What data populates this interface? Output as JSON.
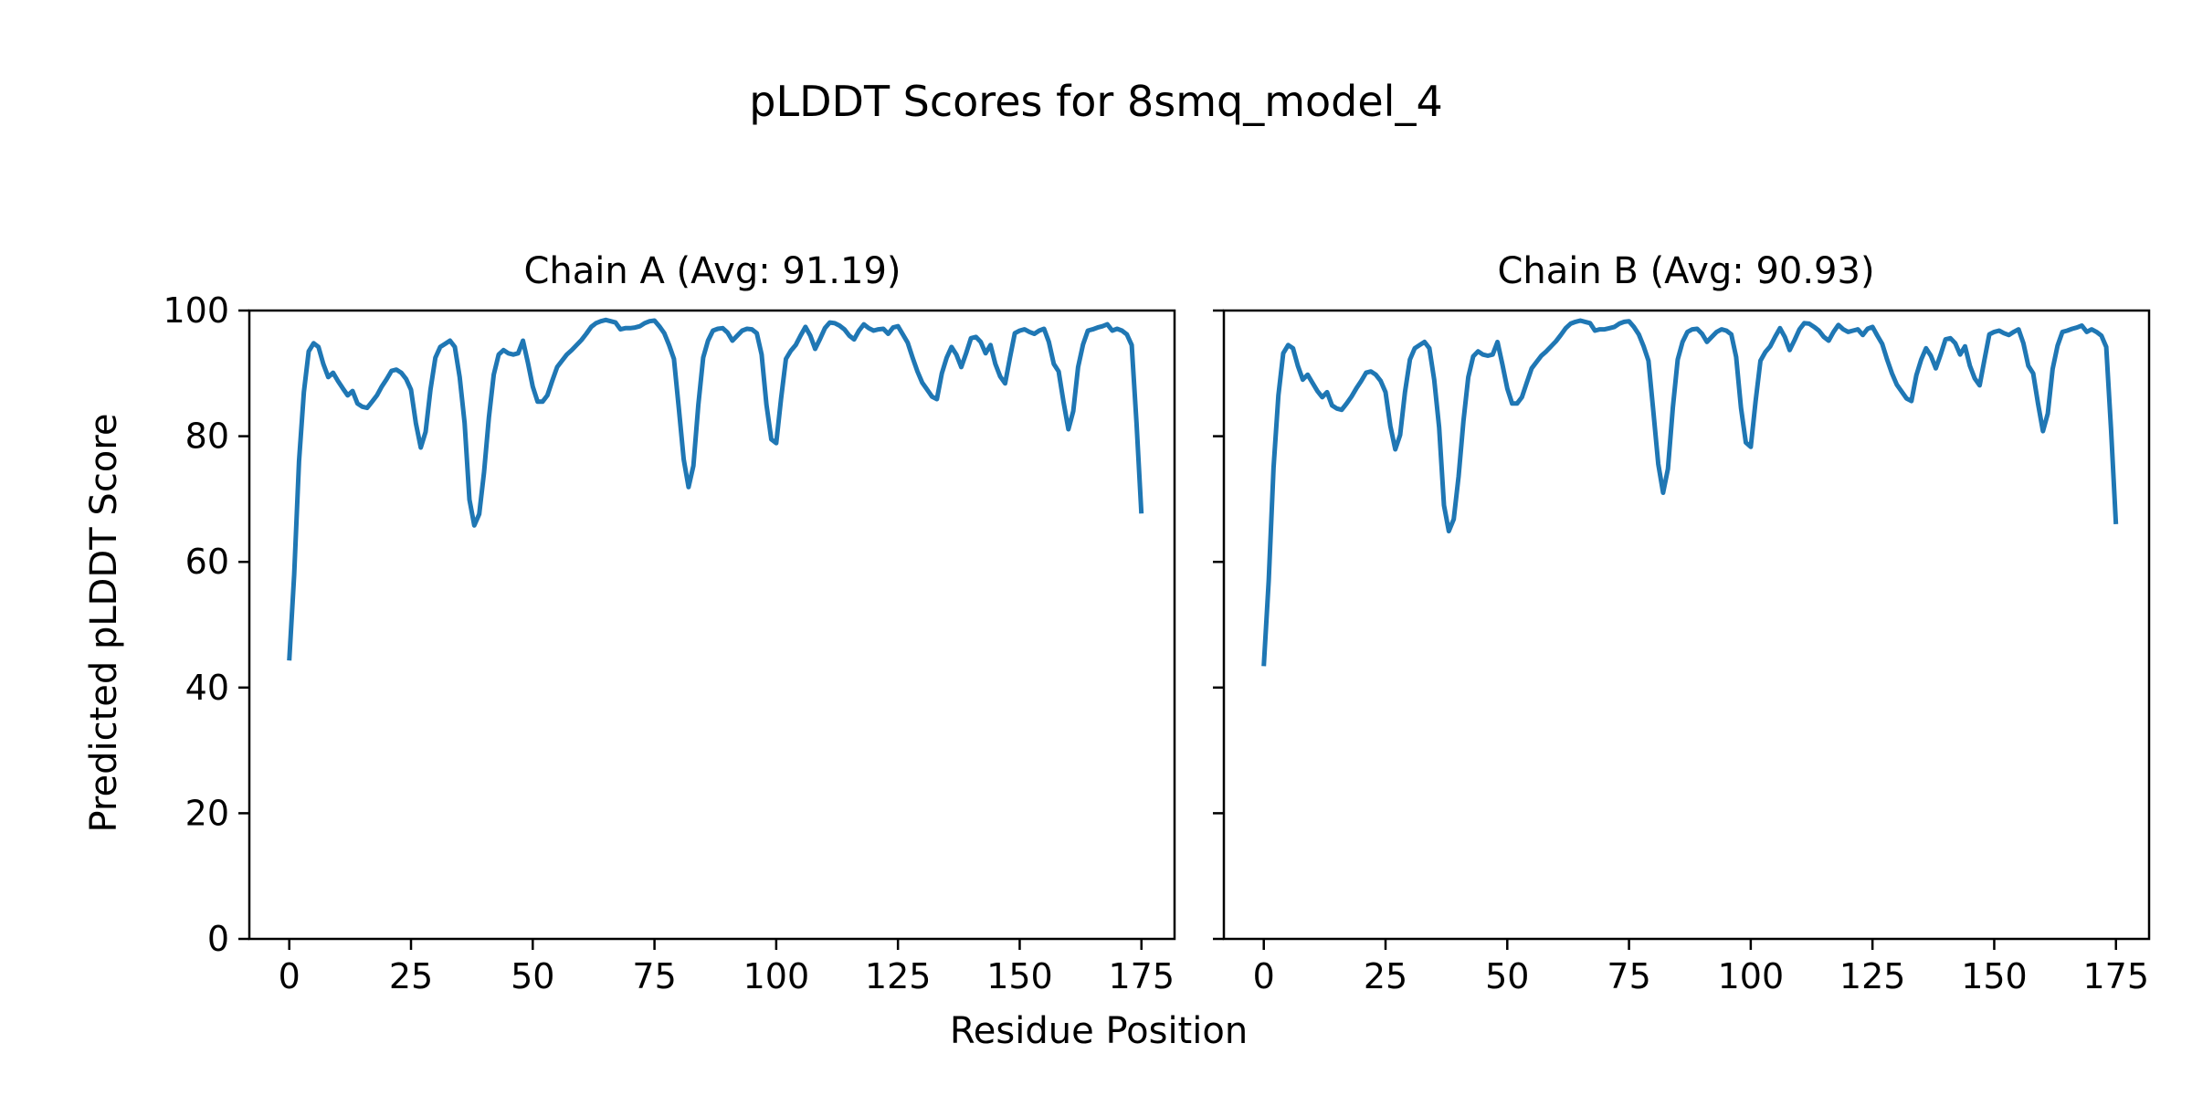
{
  "chart_data": {
    "type": "line",
    "title": "pLDDT Scores for 8smq_model_4",
    "xlabel": "Residue Position",
    "ylabel": "Predicted pLDDT Score",
    "xlim": [
      -8.2,
      181.8
    ],
    "ylim": [
      0,
      100
    ],
    "xticks": [
      0,
      25,
      50,
      75,
      100,
      125,
      150,
      175
    ],
    "yticks": [
      0,
      20,
      40,
      60,
      80,
      100
    ],
    "grid": false,
    "legend": "none",
    "line_color": "#1f77b4",
    "spine_color": "#000000",
    "background_color": "#ffffff",
    "subplots": [
      {
        "title": "Chain A (Avg: 91.19)",
        "series_name": "Chain A pLDDT",
        "avg": 91.19,
        "x_start": 0,
        "values": [
          44.3,
          58.0,
          76.0,
          87.0,
          93.5,
          94.8,
          94.2,
          91.5,
          89.4,
          90.1,
          88.8,
          87.6,
          86.5,
          87.2,
          85.2,
          84.7,
          84.5,
          85.5,
          86.5,
          87.9,
          89.1,
          90.4,
          90.6,
          90.1,
          89.1,
          87.4,
          82.1,
          78.2,
          80.7,
          87.4,
          92.5,
          94.2,
          94.7,
          95.2,
          94.2,
          89.4,
          82.1,
          69.9,
          65.8,
          67.6,
          74.3,
          83.0,
          89.8,
          93.0,
          93.7,
          93.2,
          93.0,
          93.2,
          95.2,
          91.7,
          87.9,
          85.5,
          85.5,
          86.5,
          88.8,
          91.0,
          92.0,
          93.0,
          93.7,
          94.5,
          95.3,
          96.3,
          97.4,
          98.0,
          98.3,
          98.5,
          98.3,
          98.1,
          97.0,
          97.2,
          97.2,
          97.3,
          97.5,
          98.0,
          98.3,
          98.4,
          97.5,
          96.4,
          94.5,
          92.3,
          84.5,
          76.3,
          71.9,
          75.3,
          85.0,
          92.5,
          95.2,
          96.8,
          97.1,
          97.2,
          96.5,
          95.2,
          96.0,
          96.8,
          97.1,
          97.0,
          96.4,
          93.0,
          85.0,
          79.5,
          78.9,
          86.0,
          92.3,
          93.6,
          94.5,
          96.0,
          97.4,
          96.0,
          93.9,
          95.5,
          97.2,
          98.1,
          98.0,
          97.6,
          97.0,
          96.0,
          95.4,
          96.8,
          97.8,
          97.2,
          96.8,
          97.0,
          97.1,
          96.3,
          97.3,
          97.5,
          96.2,
          94.9,
          92.5,
          90.3,
          88.5,
          87.4,
          86.3,
          85.9,
          90.0,
          92.5,
          94.2,
          93.0,
          91.0,
          93.2,
          95.6,
          95.8,
          95.0,
          93.2,
          94.5,
          91.5,
          89.5,
          88.4,
          92.5,
          96.4,
          96.8,
          97.0,
          96.6,
          96.3,
          96.8,
          97.1,
          95.0,
          91.5,
          90.3,
          85.5,
          81.1,
          84.0,
          91.0,
          94.6,
          96.8,
          97.0,
          97.3,
          97.5,
          97.8,
          96.8,
          97.1,
          96.8,
          96.2,
          94.5,
          82.0,
          67.7
        ]
      },
      {
        "title": "Chain B (Avg: 90.93)",
        "series_name": "Chain B pLDDT",
        "avg": 90.93,
        "x_start": 0,
        "values": [
          43.4,
          57.0,
          75.0,
          86.5,
          93.2,
          94.5,
          94.0,
          91.2,
          89.0,
          89.8,
          88.5,
          87.2,
          86.2,
          87.0,
          84.9,
          84.4,
          84.2,
          85.2,
          86.3,
          87.6,
          88.8,
          90.1,
          90.3,
          89.8,
          88.8,
          87.0,
          81.6,
          77.9,
          80.2,
          87.0,
          92.2,
          94.0,
          94.5,
          95.0,
          94.0,
          89.0,
          81.4,
          69.0,
          64.9,
          66.8,
          73.6,
          82.4,
          89.4,
          92.7,
          93.5,
          93.0,
          92.8,
          93.0,
          95.0,
          91.4,
          87.6,
          85.2,
          85.2,
          86.2,
          88.5,
          90.8,
          91.8,
          92.8,
          93.5,
          94.3,
          95.1,
          96.1,
          97.2,
          97.9,
          98.2,
          98.4,
          98.2,
          98.0,
          96.8,
          97.0,
          97.0,
          97.2,
          97.4,
          97.9,
          98.2,
          98.3,
          97.4,
          96.2,
          94.3,
          92.0,
          84.0,
          75.6,
          71.0,
          74.8,
          84.6,
          92.2,
          95.0,
          96.6,
          97.0,
          97.1,
          96.3,
          95.0,
          95.8,
          96.6,
          97.0,
          96.8,
          96.2,
          92.6,
          84.5,
          79.0,
          78.3,
          85.6,
          92.0,
          93.4,
          94.3,
          95.8,
          97.2,
          95.8,
          93.7,
          95.3,
          97.0,
          98.0,
          97.9,
          97.4,
          96.8,
          95.8,
          95.2,
          96.6,
          97.7,
          97.0,
          96.6,
          96.8,
          97.0,
          96.1,
          97.1,
          97.4,
          96.0,
          94.7,
          92.2,
          90.0,
          88.2,
          87.1,
          86.0,
          85.6,
          89.7,
          92.2,
          94.0,
          92.8,
          90.8,
          93.0,
          95.4,
          95.6,
          94.8,
          93.0,
          94.3,
          91.2,
          89.2,
          88.1,
          92.2,
          96.2,
          96.6,
          96.8,
          96.4,
          96.1,
          96.6,
          97.0,
          94.8,
          91.2,
          90.0,
          85.2,
          80.8,
          83.6,
          90.7,
          94.4,
          96.6,
          96.8,
          97.1,
          97.3,
          97.6,
          96.6,
          97.0,
          96.6,
          96.0,
          94.2,
          81.0,
          66.0
        ]
      }
    ]
  }
}
